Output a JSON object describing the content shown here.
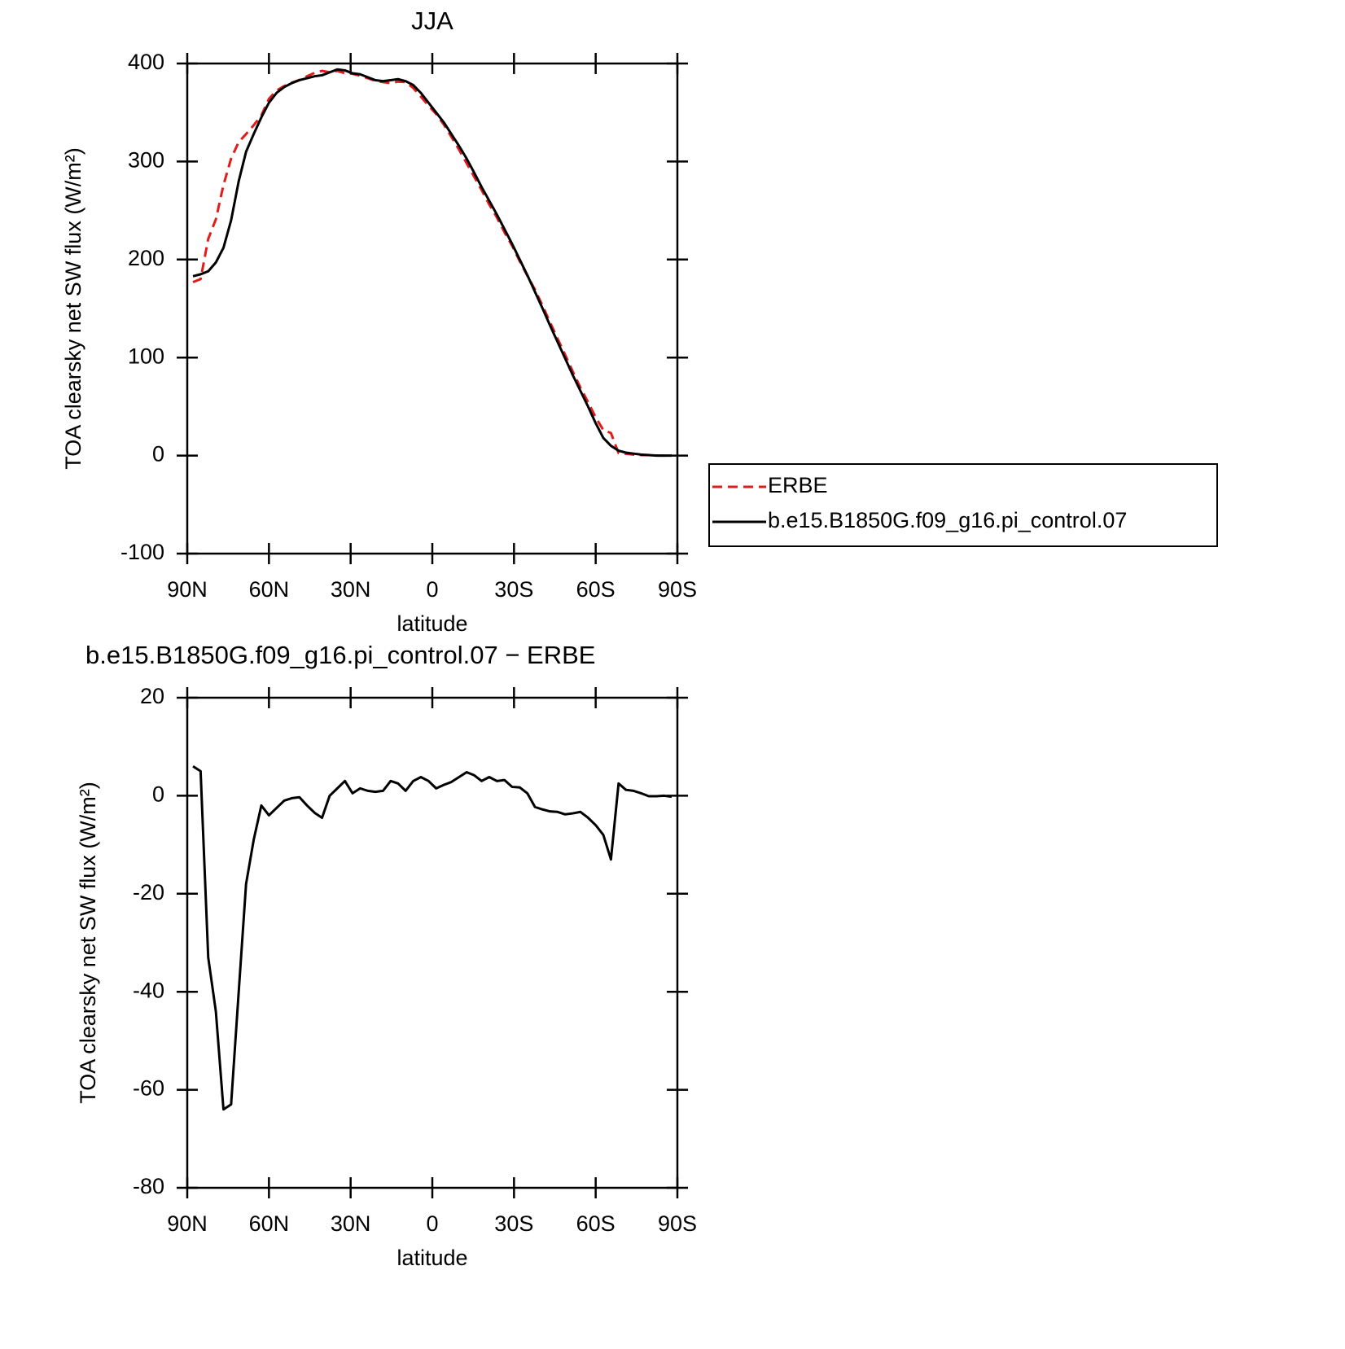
{
  "chart_data": [
    {
      "type": "line",
      "title": "JJA",
      "xlabel": "latitude",
      "ylabel": "TOA clearsky net SW flux (W/m²)",
      "x": [
        87.9,
        85.1,
        82.3,
        79.5,
        76.7,
        73.9,
        71.1,
        68.4,
        65.6,
        62.8,
        60.0,
        57.2,
        54.4,
        51.6,
        48.8,
        46.0,
        43.2,
        40.5,
        37.7,
        34.9,
        32.1,
        29.3,
        26.5,
        23.7,
        20.9,
        18.1,
        15.3,
        12.6,
        9.8,
        7.0,
        4.2,
        1.4,
        -1.4,
        -4.2,
        -7.0,
        -9.8,
        -12.6,
        -15.3,
        -18.1,
        -20.9,
        -23.7,
        -26.5,
        -29.3,
        -32.1,
        -34.9,
        -37.7,
        -40.5,
        -43.2,
        -46.0,
        -48.8,
        -51.6,
        -54.4,
        -57.2,
        -60.0,
        -62.8,
        -65.6,
        -68.4,
        -71.1,
        -73.9,
        -76.7,
        -79.5,
        -82.3,
        -85.1,
        -87.9
      ],
      "xlim": [
        90,
        -90
      ],
      "xticks": [
        {
          "value": 90,
          "label": "90N"
        },
        {
          "value": 60,
          "label": "60N"
        },
        {
          "value": 30,
          "label": "30N"
        },
        0,
        {
          "value": -30,
          "label": "30S"
        },
        {
          "value": -60,
          "label": "60S"
        },
        {
          "value": -90,
          "label": "90S"
        }
      ],
      "ylim": [
        -100,
        400
      ],
      "yticks": [
        -100,
        0,
        100,
        200,
        300,
        400
      ],
      "legend": "right",
      "series": [
        {
          "name": "ERBE",
          "color": "#e21b1b",
          "dashed": true,
          "values": [
            177,
            180,
            221,
            241,
            276,
            303,
            320,
            328,
            337,
            347,
            364,
            372.5,
            377,
            380.5,
            383.3,
            387,
            390.5,
            392.5,
            391,
            392.5,
            390,
            389.5,
            387.5,
            385,
            382.2,
            381,
            380,
            381.5,
            381,
            375,
            366.2,
            357,
            348.5,
            337.8,
            325.2,
            312.2,
            298.2,
            284.8,
            271,
            256.2,
            243,
            227.8,
            214.2,
            198.3,
            183.5,
            169.3,
            152.8,
            136.2,
            119.3,
            102.8,
            85.6,
            69.3,
            54.5,
            39,
            26,
            23,
            2.5,
            1.8,
            1,
            0.5,
            0.6,
            0.1,
            0,
            0.2
          ]
        },
        {
          "name": "b.e15.B1850G.f09_g16.pi_control.07",
          "color": "#000000",
          "dashed": false,
          "values": [
            183,
            185,
            188,
            197,
            212,
            240,
            280,
            310,
            328,
            345,
            360,
            370,
            376,
            380,
            383,
            385,
            387,
            388,
            391,
            394,
            393,
            390,
            389,
            386,
            383,
            382,
            383,
            384,
            382,
            378,
            370,
            360,
            350,
            340,
            328,
            316,
            303,
            289,
            274,
            260,
            246,
            231,
            216,
            200,
            184,
            167,
            150,
            133,
            116,
            99,
            82,
            66,
            50,
            33,
            18,
            10,
            5,
            3,
            2,
            1,
            0.5,
            0,
            0,
            0
          ]
        }
      ]
    },
    {
      "type": "line",
      "title": "b.e15.B1850G.f09_g16.pi_control.07 − ERBE",
      "xlabel": "latitude",
      "ylabel": "TOA clearsky net SW flux (W/m²)",
      "x": [
        87.9,
        85.1,
        82.3,
        79.5,
        76.7,
        73.9,
        71.1,
        68.4,
        65.6,
        62.8,
        60.0,
        57.2,
        54.4,
        51.6,
        48.8,
        46.0,
        43.2,
        40.5,
        37.7,
        34.9,
        32.1,
        29.3,
        26.5,
        23.7,
        20.9,
        18.1,
        15.3,
        12.6,
        9.8,
        7.0,
        4.2,
        1.4,
        -1.4,
        -4.2,
        -7.0,
        -9.8,
        -12.6,
        -15.3,
        -18.1,
        -20.9,
        -23.7,
        -26.5,
        -29.3,
        -32.1,
        -34.9,
        -37.7,
        -40.5,
        -43.2,
        -46.0,
        -48.8,
        -51.6,
        -54.4,
        -57.2,
        -60.0,
        -62.8,
        -65.6,
        -68.4,
        -71.1,
        -73.9,
        -76.7,
        -79.5,
        -82.3,
        -85.1,
        -87.9
      ],
      "xlim": [
        90,
        -90
      ],
      "xticks": [
        {
          "value": 90,
          "label": "90N"
        },
        {
          "value": 60,
          "label": "60N"
        },
        {
          "value": 30,
          "label": "30N"
        },
        0,
        {
          "value": -30,
          "label": "30S"
        },
        {
          "value": -60,
          "label": "60S"
        },
        {
          "value": -90,
          "label": "90S"
        }
      ],
      "ylim": [
        -80,
        20
      ],
      "yticks": [
        -80,
        -60,
        -40,
        -20,
        0,
        20
      ],
      "color": "#000000",
      "values": [
        6,
        5,
        -33,
        -44,
        -64,
        -63,
        -40,
        -18,
        -9,
        -2,
        -4,
        -2.5,
        -1,
        -0.5,
        -0.3,
        -2,
        -3.5,
        -4.5,
        0,
        1.5,
        3,
        0.5,
        1.5,
        1,
        0.8,
        1,
        3,
        2.5,
        1,
        3,
        3.8,
        3,
        1.5,
        2.2,
        2.8,
        3.8,
        4.8,
        4.2,
        3,
        3.8,
        3,
        3.2,
        1.8,
        1.7,
        0.5,
        -2.3,
        -2.8,
        -3.2,
        -3.3,
        -3.8,
        -3.6,
        -3.3,
        -4.5,
        -6,
        -8,
        -13,
        2.5,
        1.2,
        1,
        0.5,
        -0.1,
        -0.1,
        0,
        -0.2
      ]
    }
  ]
}
